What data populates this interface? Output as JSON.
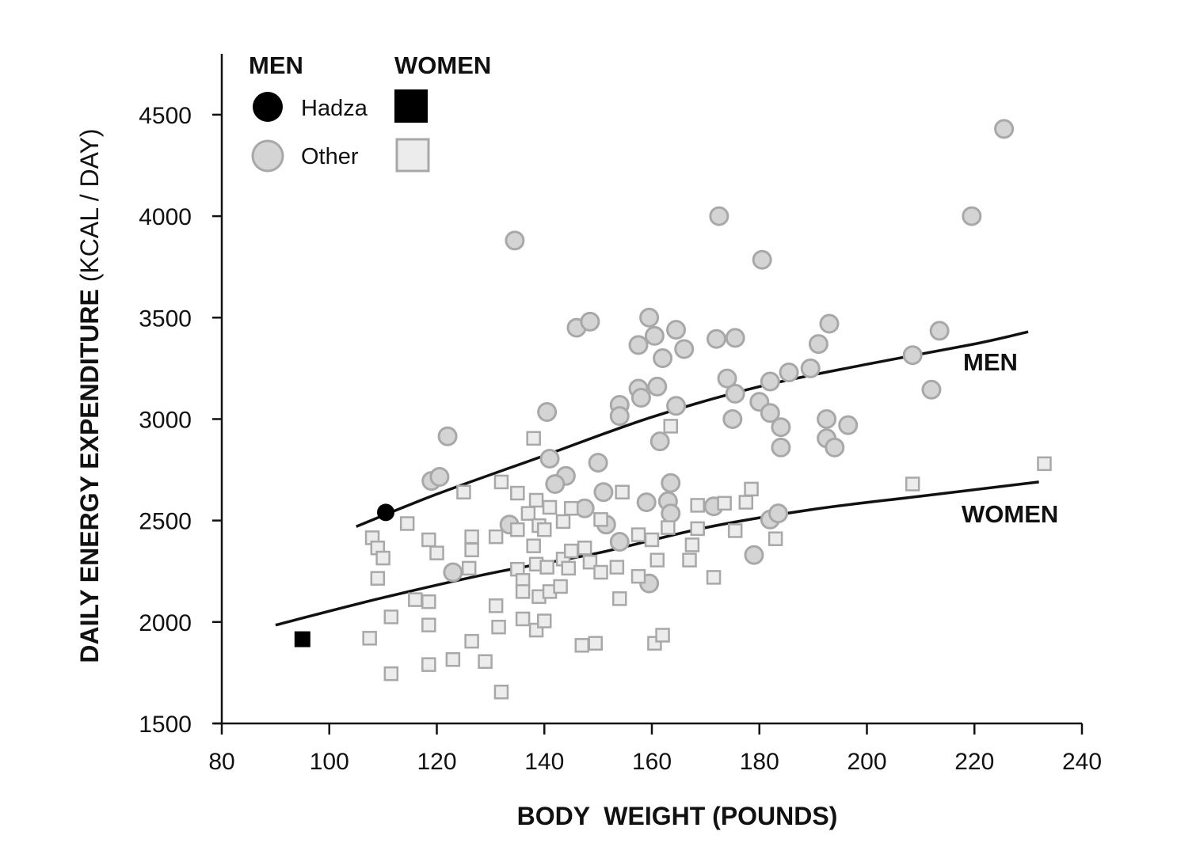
{
  "chart_data": {
    "type": "scatter",
    "title": "",
    "xlabel": "BODY  WEIGHT (POUNDS)",
    "ylabel_bold": "DAILY ENERGY EXPENDITURE",
    "ylabel_light": " (KCAL / DAY)",
    "xlim": [
      80,
      240
    ],
    "ylim": [
      1500,
      4800
    ],
    "x_ticks": [
      "80",
      "100",
      "120",
      "140",
      "160",
      "180",
      "200",
      "220",
      "240"
    ],
    "y_ticks": [
      "1500",
      "2000",
      "2500",
      "3000",
      "3500",
      "4000",
      "4500"
    ],
    "legend": {
      "men_heading": "MEN",
      "women_heading": "WOMEN",
      "hadza_label": "Hadza",
      "other_label": "Other",
      "position": "top-left"
    },
    "colors": {
      "hadza": "#000000",
      "other_fill": "#d4d4d4",
      "other_stroke": "#a8a8a8",
      "women_other_fill": "#ececec",
      "curve": "#111111"
    },
    "series": [
      {
        "name": "Men - Hadza",
        "marker": "circle",
        "points": [
          [
            110.5,
            2540
          ]
        ]
      },
      {
        "name": "Women - Hadza",
        "marker": "square",
        "points": [
          [
            95,
            1915
          ]
        ]
      },
      {
        "name": "Men - Other",
        "marker": "circle",
        "points": [
          [
            134.5,
            3880
          ],
          [
            172.5,
            4000
          ],
          [
            180.5,
            3785
          ],
          [
            219.5,
            4000
          ],
          [
            225.5,
            4430
          ],
          [
            146,
            3450
          ],
          [
            148.5,
            3480
          ],
          [
            157.5,
            3365
          ],
          [
            159.5,
            3500
          ],
          [
            160.5,
            3410
          ],
          [
            164.5,
            3440
          ],
          [
            166,
            3345
          ],
          [
            172,
            3395
          ],
          [
            175.5,
            3400
          ],
          [
            193,
            3470
          ],
          [
            213.5,
            3435
          ],
          [
            191,
            3370
          ],
          [
            208.5,
            3315
          ],
          [
            212,
            3145
          ],
          [
            189.5,
            3250
          ],
          [
            185.5,
            3230
          ],
          [
            182,
            3185
          ],
          [
            174,
            3200
          ],
          [
            175.5,
            3125
          ],
          [
            162,
            3300
          ],
          [
            157.5,
            3150
          ],
          [
            158,
            3105
          ],
          [
            161,
            3160
          ],
          [
            154,
            3070
          ],
          [
            154,
            3015
          ],
          [
            164.5,
            3065
          ],
          [
            140.5,
            3035
          ],
          [
            175,
            3000
          ],
          [
            180,
            3085
          ],
          [
            182,
            3030
          ],
          [
            184,
            2960
          ],
          [
            192.5,
            3000
          ],
          [
            196.5,
            2970
          ],
          [
            192.5,
            2905
          ],
          [
            194,
            2860
          ],
          [
            184,
            2860
          ],
          [
            161.5,
            2890
          ],
          [
            122,
            2915
          ],
          [
            141,
            2805
          ],
          [
            150,
            2785
          ],
          [
            144,
            2720
          ],
          [
            142,
            2680
          ],
          [
            119,
            2695
          ],
          [
            120.5,
            2715
          ],
          [
            151,
            2640
          ],
          [
            159,
            2590
          ],
          [
            163,
            2595
          ],
          [
            163.5,
            2685
          ],
          [
            163.5,
            2535
          ],
          [
            147.5,
            2560
          ],
          [
            133.5,
            2480
          ],
          [
            151.5,
            2480
          ],
          [
            154,
            2395
          ],
          [
            171.5,
            2570
          ],
          [
            182,
            2505
          ],
          [
            183.5,
            2535
          ],
          [
            179,
            2330
          ],
          [
            123,
            2245
          ],
          [
            159.5,
            2190
          ]
        ]
      },
      {
        "name": "Women - Other",
        "marker": "square",
        "points": [
          [
            138,
            2905
          ],
          [
            163.5,
            2965
          ],
          [
            125,
            2640
          ],
          [
            132,
            2690
          ],
          [
            135,
            2635
          ],
          [
            138.5,
            2600
          ],
          [
            141,
            2565
          ],
          [
            145,
            2560
          ],
          [
            137,
            2535
          ],
          [
            154.5,
            2640
          ],
          [
            143.5,
            2495
          ],
          [
            139,
            2475
          ],
          [
            140,
            2455
          ],
          [
            135,
            2455
          ],
          [
            150.5,
            2505
          ],
          [
            114.5,
            2485
          ],
          [
            108,
            2415
          ],
          [
            109,
            2365
          ],
          [
            110,
            2315
          ],
          [
            118.5,
            2405
          ],
          [
            120,
            2340
          ],
          [
            126.5,
            2420
          ],
          [
            126.5,
            2355
          ],
          [
            131,
            2420
          ],
          [
            126,
            2265
          ],
          [
            109,
            2215
          ],
          [
            138,
            2375
          ],
          [
            138.5,
            2285
          ],
          [
            140.5,
            2270
          ],
          [
            135,
            2260
          ],
          [
            136,
            2205
          ],
          [
            136,
            2150
          ],
          [
            139,
            2125
          ],
          [
            141,
            2150
          ],
          [
            143,
            2175
          ],
          [
            143.5,
            2310
          ],
          [
            145,
            2350
          ],
          [
            144.5,
            2265
          ],
          [
            147.5,
            2365
          ],
          [
            148.5,
            2295
          ],
          [
            150.5,
            2245
          ],
          [
            153.5,
            2270
          ],
          [
            157.5,
            2225
          ],
          [
            157.5,
            2430
          ],
          [
            160,
            2405
          ],
          [
            161,
            2305
          ],
          [
            163,
            2465
          ],
          [
            167.5,
            2380
          ],
          [
            168.5,
            2460
          ],
          [
            167,
            2305
          ],
          [
            168.5,
            2575
          ],
          [
            173.5,
            2585
          ],
          [
            177.5,
            2590
          ],
          [
            178.5,
            2655
          ],
          [
            175.5,
            2450
          ],
          [
            183,
            2410
          ],
          [
            171.5,
            2220
          ],
          [
            208.5,
            2680
          ],
          [
            233,
            2780
          ],
          [
            116,
            2110
          ],
          [
            118.5,
            2100
          ],
          [
            111.5,
            2025
          ],
          [
            118.5,
            1985
          ],
          [
            131,
            2080
          ],
          [
            131.5,
            1975
          ],
          [
            136,
            2015
          ],
          [
            138.5,
            1960
          ],
          [
            140,
            2005
          ],
          [
            154,
            2115
          ],
          [
            107.5,
            1920
          ],
          [
            111.5,
            1745
          ],
          [
            118.5,
            1790
          ],
          [
            123,
            1815
          ],
          [
            126.5,
            1905
          ],
          [
            129,
            1805
          ],
          [
            132,
            1655
          ],
          [
            147,
            1885
          ],
          [
            149.5,
            1895
          ],
          [
            160.5,
            1895
          ],
          [
            162,
            1935
          ]
        ]
      }
    ],
    "fit_curves": [
      {
        "name": "MEN",
        "label": "MEN",
        "points": [
          [
            105,
            2470
          ],
          [
            120,
            2630
          ],
          [
            140,
            2820
          ],
          [
            160,
            3010
          ],
          [
            180,
            3160
          ],
          [
            200,
            3270
          ],
          [
            220,
            3370
          ],
          [
            230,
            3430
          ]
        ]
      },
      {
        "name": "WOMEN",
        "label": "WOMEN",
        "points": [
          [
            90,
            1985
          ],
          [
            110,
            2120
          ],
          [
            130,
            2240
          ],
          [
            150,
            2340
          ],
          [
            170,
            2465
          ],
          [
            190,
            2555
          ],
          [
            210,
            2620
          ],
          [
            232,
            2690
          ]
        ]
      }
    ]
  }
}
